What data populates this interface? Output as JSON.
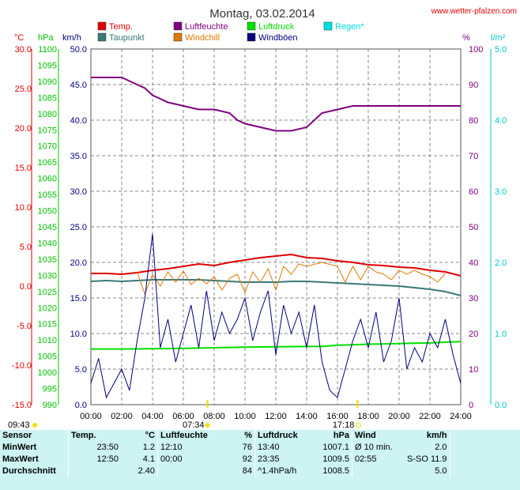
{
  "header": {
    "title": "Montag, 03.02.2014",
    "site": "www.wetter-pfalzen.com"
  },
  "axes": {
    "celsius_unit": "°C",
    "hpa_unit": "hPa",
    "kmh_unit": "km/h",
    "pct_unit": "%",
    "rain_unit": "l/m²",
    "celsius_ticks": [
      "30.0",
      "25.0",
      "20.0",
      "15.0",
      "10.0",
      "5.0",
      "0.0",
      "-5.0",
      "-10.0",
      "-15.0"
    ],
    "hpa_ticks": [
      "1100",
      "1095",
      "1090",
      "1085",
      "1080",
      "1075",
      "1070",
      "1065",
      "1060",
      "1055",
      "1050",
      "1045",
      "1040",
      "1035",
      "1030",
      "1025",
      "1020",
      "1015",
      "1010",
      "1005",
      "1000",
      "995",
      "990"
    ],
    "kmh_ticks": [
      "50.0",
      "45.0",
      "40.0",
      "35.0",
      "30.0",
      "25.0",
      "20.0",
      "15.0",
      "10.0",
      "5.0",
      "0.0"
    ],
    "pct_ticks": [
      "100",
      "90",
      "80",
      "70",
      "60",
      "50",
      "40",
      "30",
      "20",
      "10",
      "0"
    ],
    "rain_ticks": [
      "5.0",
      "4.0",
      "3.0",
      "2.0",
      "1.0",
      "0.0"
    ],
    "x_ticks": [
      "00:00",
      "02:00",
      "04:00",
      "06:00",
      "08:00",
      "10:00",
      "12:00",
      "14:00",
      "16:00",
      "18:00",
      "20:00",
      "22:00",
      "24:00"
    ]
  },
  "sun": {
    "moonrise": "09:43",
    "sunrise": "07:34",
    "sunset": "17:18"
  },
  "colors": {
    "temp": "#e00000",
    "dewpoint": "#3a7a78",
    "humidity": "#800080",
    "windchill": "#e07800",
    "pressure": "#00e000",
    "gust": "#000080",
    "rain": "#00e0e0",
    "celsius_axis": "#e00000",
    "hpa_axis": "#00c000",
    "rain_axis": "#00c8c8",
    "stats_bg": "#cdf3f3"
  },
  "chart_data": {
    "type": "line",
    "x_range_hours": [
      0,
      24
    ],
    "ylim_kmh": [
      0,
      50
    ],
    "ylim_celsius": [
      -15,
      30
    ],
    "ylim_hpa": [
      990,
      1100
    ],
    "ylim_pct": [
      0,
      100
    ],
    "ylim_rain": [
      0,
      5
    ],
    "grid": true,
    "legend": [
      {
        "name": "Temp.",
        "color": "#e00000"
      },
      {
        "name": "Taupunkt",
        "color": "#3a7a78"
      },
      {
        "name": "Luftfeuchte",
        "color": "#800080"
      },
      {
        "name": "Windchill",
        "color": "#e07800"
      },
      {
        "name": "Luftdruck",
        "color": "#00e000"
      },
      {
        "name": "Windböen",
        "color": "#000080"
      },
      {
        "name": "Regen*",
        "color": "#00e0e0"
      }
    ],
    "series": [
      {
        "name": "Temp.",
        "axis": "celsius",
        "color": "#e00000",
        "x": [
          0,
          1,
          2,
          3,
          4,
          5,
          6,
          7,
          8,
          9,
          10,
          11,
          12,
          13,
          14,
          15,
          16,
          17,
          18,
          19,
          20,
          21,
          22,
          23,
          24
        ],
        "y": [
          1.6,
          1.6,
          1.5,
          1.7,
          2.0,
          2.2,
          2.5,
          2.8,
          2.6,
          3.0,
          3.3,
          3.6,
          3.8,
          4.0,
          3.6,
          3.5,
          3.2,
          3.0,
          2.7,
          2.6,
          2.4,
          2.3,
          2.0,
          1.8,
          1.3
        ]
      },
      {
        "name": "Taupunkt",
        "axis": "celsius",
        "color": "#3a7a78",
        "x": [
          0,
          1,
          2,
          3,
          4,
          5,
          6,
          7,
          8,
          9,
          10,
          11,
          12,
          13,
          14,
          15,
          16,
          17,
          18,
          19,
          20,
          21,
          22,
          23,
          24
        ],
        "y": [
          0.6,
          0.7,
          0.6,
          0.7,
          0.8,
          0.8,
          0.8,
          0.8,
          0.7,
          0.6,
          0.5,
          0.5,
          0.5,
          0.6,
          0.6,
          0.5,
          0.4,
          0.3,
          0.2,
          0.1,
          0.0,
          -0.2,
          -0.4,
          -0.7,
          -1.2
        ]
      },
      {
        "name": "Luftfeuchte",
        "axis": "pct",
        "color": "#800080",
        "x": [
          0,
          1,
          2,
          2.5,
          3,
          3.5,
          4,
          4.5,
          5,
          6,
          7,
          8,
          9,
          9.5,
          10,
          11,
          12,
          13,
          14,
          14.5,
          15,
          16,
          17,
          18,
          19,
          20,
          21,
          22,
          23,
          24
        ],
        "y": [
          92,
          92,
          92,
          91,
          90,
          89,
          87,
          86,
          85,
          84,
          83,
          83,
          82,
          80,
          79,
          78,
          77,
          77,
          78,
          80,
          82,
          83,
          84,
          84,
          84,
          84,
          84,
          84,
          84,
          84
        ]
      },
      {
        "name": "Windchill",
        "axis": "celsius",
        "color": "#e07800",
        "x": [
          3,
          3.5,
          4,
          4.5,
          5,
          5.5,
          6,
          6.5,
          7,
          7.5,
          8,
          8.5,
          9,
          9.5,
          10,
          10.5,
          11,
          11.5,
          12,
          12.5,
          13,
          13.5,
          14,
          15,
          16,
          16.5,
          17,
          17.5,
          18,
          18.5,
          19,
          19.5,
          20,
          20.5,
          21,
          21.5,
          22,
          22.5,
          23
        ],
        "y": [
          1.8,
          -1.0,
          1.5,
          0.0,
          1.8,
          0.5,
          1.9,
          0.2,
          1.0,
          0.3,
          1.2,
          -0.5,
          1.0,
          1.5,
          -0.8,
          1.8,
          0.5,
          2.2,
          -0.5,
          2.5,
          1.5,
          2.8,
          2.5,
          3.0,
          2.5,
          0.5,
          2.5,
          0.8,
          2.5,
          1.8,
          1.5,
          0.8,
          2.0,
          1.5,
          2.0,
          1.5,
          1.2,
          0.5,
          1.6
        ]
      },
      {
        "name": "Luftdruck",
        "axis": "hpa",
        "color": "#00e000",
        "x": [
          0,
          2,
          4,
          6,
          8,
          10,
          12,
          14,
          15,
          16,
          17,
          18,
          19,
          20,
          21,
          22,
          23,
          24
        ],
        "y": [
          1007.2,
          1007.2,
          1007.3,
          1007.4,
          1007.6,
          1007.8,
          1007.9,
          1008.0,
          1008.0,
          1008.4,
          1008.5,
          1008.7,
          1008.8,
          1008.9,
          1009.0,
          1009.1,
          1009.3,
          1009.5
        ]
      },
      {
        "name": "Windböen",
        "axis": "kmh",
        "color": "#000080",
        "x": [
          0,
          0.5,
          1,
          1.5,
          2,
          2.5,
          3,
          3.5,
          4,
          4.5,
          5,
          5.5,
          6,
          6.5,
          7,
          7.5,
          8,
          8.5,
          9,
          9.5,
          10,
          10.5,
          11,
          11.5,
          12,
          12.5,
          13,
          13.5,
          14,
          14.5,
          15,
          15.5,
          16,
          16.5,
          17,
          17.5,
          18,
          18.5,
          19,
          19.5,
          20,
          20.5,
          21,
          21.5,
          22,
          22.5,
          23,
          23.5,
          24
        ],
        "y": [
          3.0,
          6.5,
          1.0,
          3.0,
          5.0,
          2.0,
          9.0,
          15.0,
          24.0,
          8.0,
          12.0,
          6.0,
          10.0,
          14.0,
          8.0,
          16.0,
          9.0,
          13.0,
          10.0,
          12.0,
          15.0,
          9.0,
          13.0,
          16.0,
          7.0,
          14.0,
          10.0,
          13.0,
          8.0,
          14.0,
          6.0,
          2.0,
          1.0,
          5.0,
          9.0,
          12.0,
          8.0,
          13.0,
          6.0,
          9.0,
          15.0,
          5.0,
          8.0,
          6.0,
          10.0,
          8.0,
          12.0,
          7.0,
          3.0
        ]
      }
    ]
  },
  "stats": {
    "headers": [
      "Sensor",
      "Temp.",
      "°C",
      "Luftfeuchte",
      "%",
      "Luftdruck",
      "hPa",
      "Wind",
      "km/h"
    ],
    "rows": [
      {
        "label": "MinWert",
        "t_time": "23:50",
        "t_val": "1.2",
        "h_time": "12:10",
        "h_val": "76",
        "p_time": "13:40",
        "p_val": "1007.1",
        "w_time": "Ø 10 min.",
        "w_val": "2.0"
      },
      {
        "label": "MaxWert",
        "t_time": "12:50",
        "t_val": "4.1",
        "h_time": "00:00",
        "h_val": "92",
        "p_time": "23:35",
        "p_val": "1009.5",
        "w_time": "02:55",
        "w_val": "S-SO 11.9"
      },
      {
        "label": "Durchschnitt",
        "t_time": "",
        "t_val": "2.40",
        "h_time": "",
        "h_val": "84",
        "p_time": "^1.4hPa/h",
        "p_val": "1008.5",
        "w_time": "",
        "w_val": "5.0"
      }
    ]
  }
}
